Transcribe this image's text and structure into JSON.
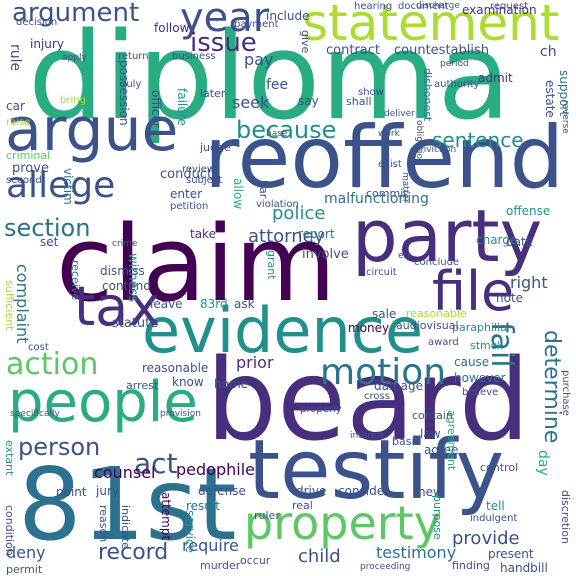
{
  "palette": [
    "#440154",
    "#472f7d",
    "#3b528b",
    "#2c728e",
    "#21908d",
    "#27ad81",
    "#5cc863",
    "#aadc32",
    "#fde725"
  ],
  "words": [
    {
      "text": "diploma",
      "color": "#27ad81"
    },
    {
      "text": "beard",
      "color": "#472f7d"
    },
    {
      "text": "claim",
      "color": "#440154"
    },
    {
      "text": "reoffend",
      "color": "#3b528b"
    },
    {
      "text": "81st",
      "color": "#2c728e"
    },
    {
      "text": "testify",
      "color": "#3b528b"
    },
    {
      "text": "evidence",
      "color": "#21908d"
    },
    {
      "text": "party",
      "color": "#472f7d"
    },
    {
      "text": "argue",
      "color": "#3b528b"
    },
    {
      "text": "statement",
      "color": "#aadc32"
    },
    {
      "text": "people",
      "color": "#27ad81"
    },
    {
      "text": "tax",
      "color": "#472f7d"
    },
    {
      "text": "file",
      "color": "#472f7d"
    },
    {
      "text": "property",
      "color": "#5cc863"
    },
    {
      "text": "allege",
      "color": "#3b528b"
    },
    {
      "text": "motion",
      "color": "#2c728e"
    },
    {
      "text": "year",
      "color": "#3b528b"
    },
    {
      "text": "action",
      "color": "#5cc863"
    },
    {
      "text": "argument",
      "color": "#3b528b"
    },
    {
      "text": "issue",
      "color": "#472f7d"
    },
    {
      "text": "because",
      "color": "#21908d"
    },
    {
      "text": "section",
      "color": "#2c728e"
    },
    {
      "text": "sentence",
      "color": "#21908d"
    },
    {
      "text": "person",
      "color": "#3b528b"
    },
    {
      "text": "record",
      "color": "#3b528b"
    },
    {
      "text": "act",
      "color": "#3b528b"
    },
    {
      "text": "determine",
      "color": "#2c728e"
    },
    {
      "text": "fail",
      "color": "#2c728e"
    },
    {
      "text": "police",
      "color": "#21908d"
    },
    {
      "text": "attorney",
      "color": "#3b528b"
    },
    {
      "text": "child",
      "color": "#3b528b"
    },
    {
      "text": "testimony",
      "color": "#2c728e"
    },
    {
      "text": "provide",
      "color": "#3b528b"
    },
    {
      "text": "require",
      "color": "#3b528b"
    },
    {
      "text": "pedophile",
      "color": "#440154"
    },
    {
      "text": "counsel",
      "color": "#440154"
    },
    {
      "text": "deny",
      "color": "#3b528b"
    },
    {
      "text": "complaint",
      "color": "#2c728e"
    },
    {
      "text": "malfunctioning",
      "color": "#2c728e"
    },
    {
      "text": "prior",
      "color": "#472f7d"
    },
    {
      "text": "right",
      "color": "#3b528b"
    },
    {
      "text": "pay",
      "color": "#3b528b"
    },
    {
      "text": "seek",
      "color": "#3b528b"
    },
    {
      "text": "fee",
      "color": "#3b528b"
    },
    {
      "text": "contract",
      "color": "#3b528b"
    },
    {
      "text": "countestablish",
      "color": "#3b528b"
    },
    {
      "text": "injury",
      "color": "#472f7d"
    },
    {
      "text": "rule",
      "color": "#3b528b"
    },
    {
      "text": "follow",
      "color": "#472f7d"
    },
    {
      "text": "include",
      "color": "#3b528b"
    },
    {
      "text": "examination",
      "color": "#472f7d"
    },
    {
      "text": "prove",
      "color": "#3b528b"
    },
    {
      "text": "victim",
      "color": "#2c728e"
    },
    {
      "text": "conduct",
      "color": "#3b528b"
    },
    {
      "text": "enter",
      "color": "#3b528b"
    },
    {
      "text": "offense",
      "color": "#21908d"
    },
    {
      "text": "report",
      "color": "#2c728e"
    },
    {
      "text": "involve",
      "color": "#3b528b"
    },
    {
      "text": "witness",
      "color": "#21908d"
    },
    {
      "text": "charge",
      "color": "#21908d"
    },
    {
      "text": "statute",
      "color": "#3b528b"
    },
    {
      "text": "money",
      "color": "#440154"
    },
    {
      "text": "sale",
      "color": "#3b528b"
    },
    {
      "text": "damage",
      "color": "#3b528b"
    },
    {
      "text": "cause",
      "color": "#2c728e"
    },
    {
      "text": "however",
      "color": "#2c728e"
    },
    {
      "text": "home",
      "color": "#3b528b"
    },
    {
      "text": "know",
      "color": "#3b528b"
    },
    {
      "text": "reasonable",
      "color": "#3b528b"
    },
    {
      "text": "law",
      "color": "#3b528b"
    },
    {
      "text": "agree",
      "color": "#3b528b"
    },
    {
      "text": "agreement",
      "color": "#27ad81"
    },
    {
      "text": "defense",
      "color": "#3b528b"
    },
    {
      "text": "result",
      "color": "#2c728e"
    },
    {
      "text": "service",
      "color": "#21908d"
    },
    {
      "text": "attempt",
      "color": "#440154"
    },
    {
      "text": "drive",
      "color": "#3b528b"
    },
    {
      "text": "consider",
      "color": "#3b528b"
    },
    {
      "text": "jury",
      "color": "#3b528b"
    },
    {
      "text": "point",
      "color": "#3b528b"
    },
    {
      "text": "extant",
      "color": "#21908d"
    },
    {
      "text": "condition",
      "color": "#3b528b"
    },
    {
      "text": "reason",
      "color": "#3b528b"
    },
    {
      "text": "indicate",
      "color": "#3b528b"
    },
    {
      "text": "new",
      "color": "#3b528b"
    },
    {
      "text": "purpose",
      "color": "#21908d"
    },
    {
      "text": "tell",
      "color": "#21908d"
    },
    {
      "text": "present",
      "color": "#3b528b"
    },
    {
      "text": "handbill",
      "color": "#3b528b"
    },
    {
      "text": "discretion",
      "color": "#3b528b"
    },
    {
      "text": "possession",
      "color": "#3b528b"
    },
    {
      "text": "officer",
      "color": "#3b528b"
    },
    {
      "text": "failure",
      "color": "#21908d"
    },
    {
      "text": "estate",
      "color": "#3b528b"
    },
    {
      "text": "support",
      "color": "#2c728e"
    },
    {
      "text": "admit",
      "color": "#472f7d"
    },
    {
      "text": "dishonest",
      "color": "#2c728e"
    },
    {
      "text": "say",
      "color": "#3b528b"
    },
    {
      "text": "car",
      "color": "#3b528b"
    },
    {
      "text": "take",
      "color": "#472f7d"
    },
    {
      "text": "dismiss",
      "color": "#3b528b"
    },
    {
      "text": "contend",
      "color": "#3b528b"
    },
    {
      "text": "receive",
      "color": "#2c728e"
    },
    {
      "text": "set",
      "color": "#3b528b"
    },
    {
      "text": "leave",
      "color": "#3b528b"
    },
    {
      "text": "83rd",
      "color": "#21908d"
    },
    {
      "text": "ask",
      "color": "#3b528b"
    },
    {
      "text": "note",
      "color": "#3b528b"
    },
    {
      "text": "date",
      "color": "#3b528b"
    },
    {
      "text": "give",
      "color": "#3b528b"
    },
    {
      "text": "ch",
      "color": "#3b528b"
    },
    {
      "text": "later",
      "color": "#3b528b"
    },
    {
      "text": "judge",
      "color": "#3b528b"
    },
    {
      "text": "allow",
      "color": "#27ad81"
    },
    {
      "text": "bar",
      "color": "#3b528b"
    },
    {
      "text": "shall",
      "color": "#3b528b"
    },
    {
      "text": "commit",
      "color": "#3b528b"
    },
    {
      "text": "grant",
      "color": "#21908d"
    },
    {
      "text": "paraphilia",
      "color": "#21908d"
    },
    {
      "text": "stmck",
      "color": "#21908d"
    },
    {
      "text": "audiovisual",
      "color": "#3b528b"
    },
    {
      "text": "reasonable",
      "color": "#aadc32"
    },
    {
      "text": "contain",
      "color": "#3b528b"
    },
    {
      "text": "basis",
      "color": "#3b528b"
    },
    {
      "text": "control",
      "color": "#3b528b"
    },
    {
      "text": "day",
      "color": "#27ad81"
    },
    {
      "text": "arrest",
      "color": "#3b528b"
    },
    {
      "text": "real",
      "color": "#3b528b"
    },
    {
      "text": "ruler",
      "color": "#3b528b"
    },
    {
      "text": "occur",
      "color": "#3b528b"
    },
    {
      "text": "murder",
      "color": "#3b528b"
    },
    {
      "text": "finding",
      "color": "#3b528b"
    },
    {
      "text": "permit",
      "color": "#3b528b"
    },
    {
      "text": "proceeding",
      "color": "#3b528b"
    },
    {
      "text": "purchase",
      "color": "#3b528b"
    },
    {
      "text": "sufficient",
      "color": "#aadc32"
    },
    {
      "text": "criminal",
      "color": "#5cc863"
    },
    {
      "text": "second",
      "color": "#3b528b"
    },
    {
      "text": "properly",
      "color": "#3b528b"
    },
    {
      "text": "decision",
      "color": "#3b528b"
    },
    {
      "text": "hearing",
      "color": "#3b528b"
    },
    {
      "text": "document",
      "color": "#3b528b"
    },
    {
      "text": "request",
      "color": "#3b528b"
    },
    {
      "text": "return",
      "color": "#3b528b"
    },
    {
      "text": "business",
      "color": "#3b528b"
    },
    {
      "text": "payment",
      "color": "#3b528b"
    },
    {
      "text": "duly",
      "color": "#3b528b"
    },
    {
      "text": "authority",
      "color": "#3b528b"
    },
    {
      "text": "petition",
      "color": "#3b528b"
    },
    {
      "text": "violation",
      "color": "#3b528b"
    },
    {
      "text": "review",
      "color": "#3b528b"
    },
    {
      "text": "subject",
      "color": "#3b528b"
    },
    {
      "text": "exist",
      "color": "#3b528b"
    },
    {
      "text": "conclude",
      "color": "#3b528b"
    },
    {
      "text": "circuit",
      "color": "#3b528b"
    },
    {
      "text": "award",
      "color": "#3b528b"
    },
    {
      "text": "cost",
      "color": "#3b528b"
    },
    {
      "text": "cross",
      "color": "#3b528b"
    },
    {
      "text": "believe",
      "color": "#3b528b"
    },
    {
      "text": "specifically",
      "color": "#3b528b"
    },
    {
      "text": "provision",
      "color": "#3b528b"
    },
    {
      "text": "indulgent",
      "color": "#3b528b"
    },
    {
      "text": "show",
      "color": "#3b528b"
    },
    {
      "text": "bring",
      "color": "#aadc32"
    },
    {
      "text": "raise",
      "color": "#aadc32"
    },
    {
      "text": "conviction",
      "color": "#3b528b"
    },
    {
      "text": "work",
      "color": "#3b528b"
    },
    {
      "text": "deliver",
      "color": "#3b528b"
    },
    {
      "text": "obligation",
      "color": "#3b528b"
    },
    {
      "text": "base",
      "color": "#3b528b"
    },
    {
      "text": "crime",
      "color": "#3b528b"
    },
    {
      "text": "discharge",
      "color": "#3b528b"
    },
    {
      "text": "matter",
      "color": "#3b528b"
    },
    {
      "text": "err",
      "color": "#3b528b"
    },
    {
      "text": "interest",
      "color": "#3b528b"
    },
    {
      "text": "reverse",
      "color": "#3b528b"
    },
    {
      "text": "apply",
      "color": "#3b528b"
    },
    {
      "text": "period",
      "color": "#3b528b"
    }
  ]
}
